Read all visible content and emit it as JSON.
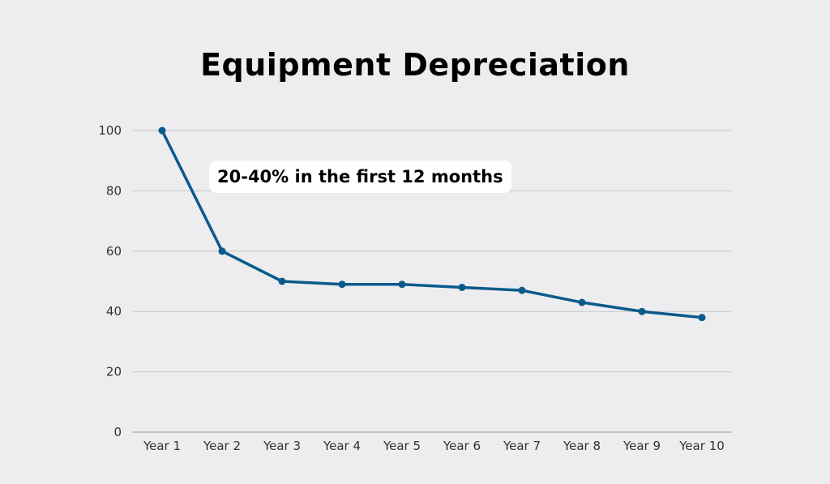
{
  "chart_data": {
    "type": "line",
    "title": "Equipment Depreciation",
    "xlabel": "",
    "ylabel": "",
    "categories": [
      "Year 1",
      "Year 2",
      "Year 3",
      "Year 4",
      "Year 5",
      "Year 6",
      "Year 7",
      "Year 8",
      "Year 9",
      "Year 10"
    ],
    "series": [
      {
        "values": [
          100,
          60,
          50,
          49,
          49,
          48,
          47,
          43,
          40,
          38
        ],
        "color": "#0b5a8c"
      }
    ],
    "ylim": [
      0,
      100
    ],
    "yticks": [
      0,
      20,
      40,
      60,
      80,
      100
    ],
    "grid": true,
    "annotation": "20-40% in the first 12 months"
  }
}
